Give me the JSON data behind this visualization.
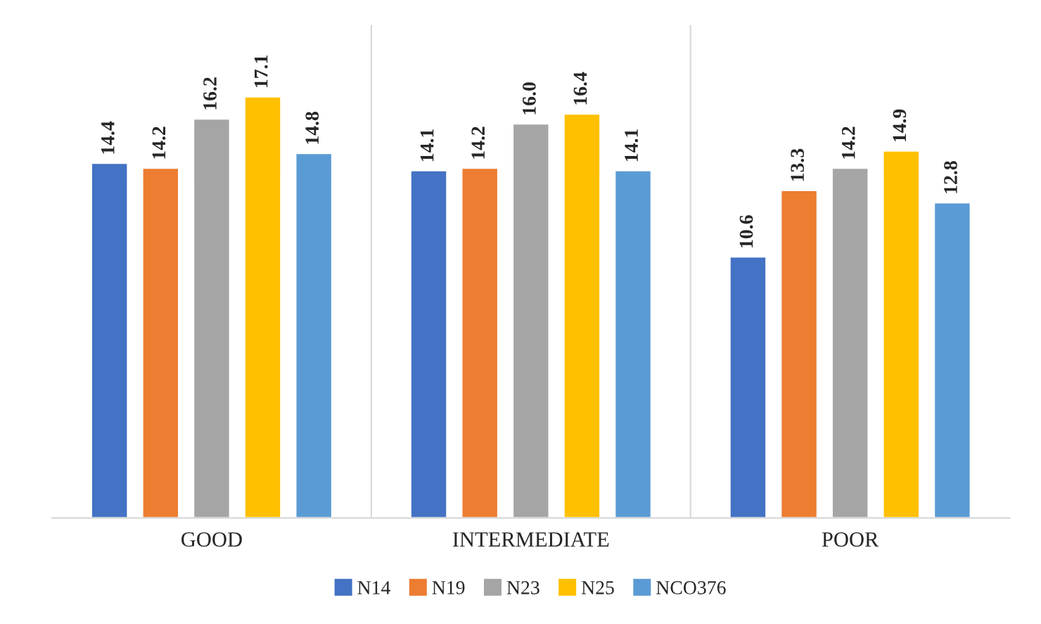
{
  "chart_data": {
    "type": "bar",
    "categories": [
      "GOOD",
      "INTERMEDIATE",
      "POOR"
    ],
    "series": [
      {
        "name": "N14",
        "color": "#4472c4",
        "values": [
          14.4,
          14.1,
          10.6
        ],
        "value_labels": [
          "14.4",
          "14.1",
          "10.6"
        ]
      },
      {
        "name": "N19",
        "color": "#ed7d31",
        "values": [
          14.2,
          14.2,
          13.3
        ],
        "value_labels": [
          "14.2",
          "14.2",
          "13.3"
        ]
      },
      {
        "name": "N23",
        "color": "#a5a5a5",
        "values": [
          16.2,
          16.0,
          14.2
        ],
        "value_labels": [
          "16.2",
          "16.0",
          "14.2"
        ]
      },
      {
        "name": "N25",
        "color": "#ffc000",
        "values": [
          17.1,
          16.4,
          14.9
        ],
        "value_labels": [
          "17.1",
          "16.4",
          "14.9"
        ]
      },
      {
        "name": "NCO376",
        "color": "#5b9bd5",
        "values": [
          14.8,
          14.1,
          12.8
        ],
        "value_labels": [
          "14.8",
          "14.1",
          "12.8"
        ]
      }
    ],
    "ylim": [
      0,
      20
    ],
    "legend": "bottom",
    "grid": false,
    "tick_labels": "x"
  }
}
